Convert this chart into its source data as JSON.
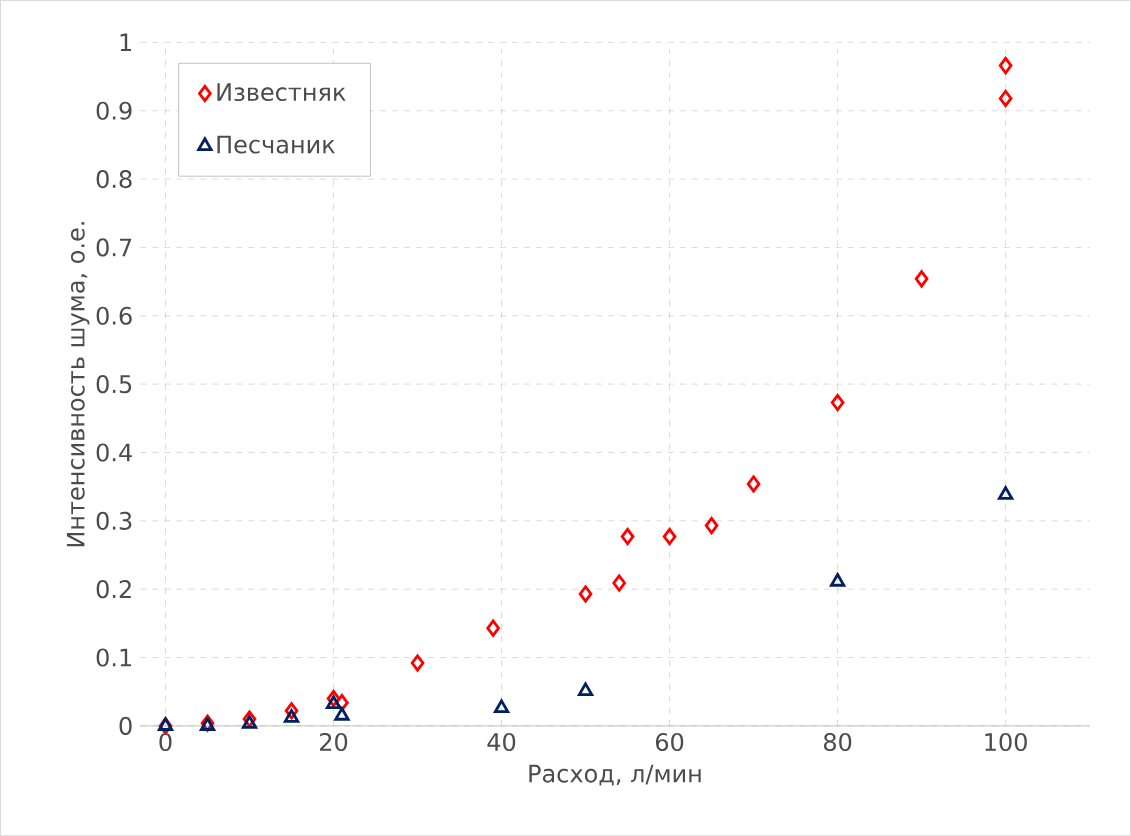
{
  "chart_data": {
    "type": "scatter",
    "xlabel": "Расход,  л/мин",
    "ylabel": "Интенсивность шума, о.е.",
    "series": [
      {
        "name": "Известняк",
        "color": "#ff0000",
        "marker": "diamond",
        "x": [
          0,
          5,
          10,
          15,
          20,
          21,
          30,
          39,
          50,
          54,
          55,
          60,
          65,
          70,
          80,
          90,
          100,
          100
        ],
        "values": [
          0,
          0.004,
          0.01,
          0.022,
          0.04,
          0.034,
          0.092,
          0.143,
          0.193,
          0.209,
          0.277,
          0.277,
          0.293,
          0.354,
          0.473,
          0.654,
          0.918,
          0.966
        ]
      },
      {
        "name": "Песчаник",
        "color": "#002060",
        "marker": "triangle",
        "x": [
          0,
          5,
          10,
          15,
          20,
          21,
          40,
          50,
          80,
          100
        ],
        "values": [
          0,
          0,
          0.003,
          0.012,
          0.032,
          0.015,
          0.026,
          0.051,
          0.211,
          0.338
        ]
      }
    ],
    "xlim": [
      -3,
      110
    ],
    "ylim": [
      0,
      1
    ],
    "xticks": [
      0,
      20,
      40,
      60,
      80,
      100
    ],
    "yticks": [
      0,
      0.1,
      0.2,
      0.3,
      0.4,
      0.5,
      0.6,
      0.7,
      0.8,
      0.9,
      1
    ],
    "grid": true,
    "legend": "top left"
  }
}
